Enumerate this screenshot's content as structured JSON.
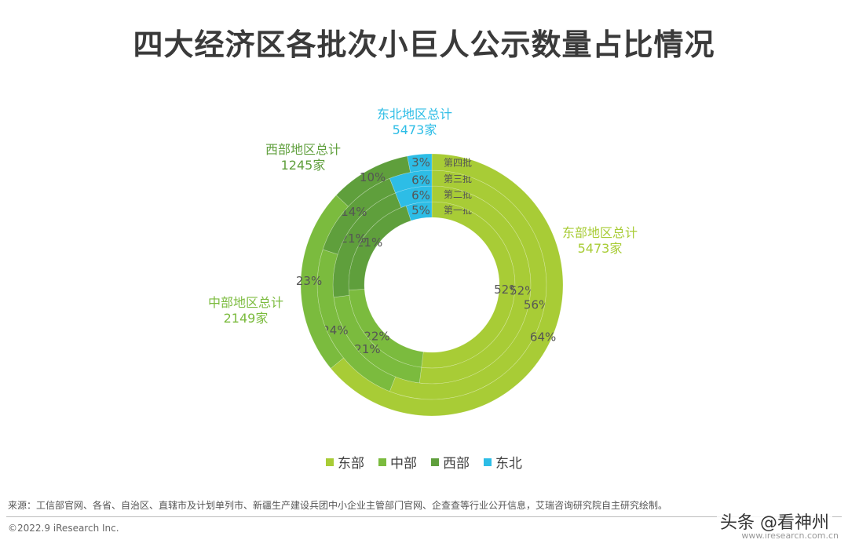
{
  "title": "四大经济区各批次小巨人公示数量占比情况",
  "colors": {
    "east": "#a8cc36",
    "central": "#7bbb3e",
    "west": "#5f9f3c",
    "northeast": "#2dbde6",
    "text_dark": "#555555"
  },
  "region_labels": {
    "northeast": {
      "line1": "东北地区总计",
      "line2": "5473家"
    },
    "west": {
      "line1": "西部地区总计",
      "line2": "1245家"
    },
    "east": {
      "line1": "东部地区总计",
      "line2": "5473家"
    },
    "central": {
      "line1": "中部地区总计",
      "line2": "2149家"
    }
  },
  "chart_data": {
    "type": "pie",
    "subtype": "multi-ring donut",
    "title": "四大经济区各批次小巨人公示数量占比情况",
    "series": [
      {
        "name": "第一批",
        "values": [
          52,
          22,
          21,
          5
        ]
      },
      {
        "name": "第二批",
        "values": [
          52,
          21,
          21,
          6
        ]
      },
      {
        "name": "第三批",
        "values": [
          56,
          24,
          14,
          6
        ]
      },
      {
        "name": "第四批",
        "values": [
          64,
          23,
          10,
          3
        ]
      }
    ],
    "categories": [
      "东部",
      "中部",
      "西部",
      "东北"
    ],
    "value_labels": {
      "第一批": [
        "52%",
        "22%",
        "21%",
        "5%"
      ],
      "第二批": [
        "52%",
        "21%",
        "21%",
        "6%"
      ],
      "第三批": [
        "56%",
        "24%",
        "14%",
        "6%"
      ],
      "第四批": [
        "64%",
        "23%",
        "10%",
        "3%"
      ]
    },
    "legend": [
      "东部",
      "中部",
      "西部",
      "东北"
    ]
  },
  "legend": [
    {
      "label": "东部",
      "color": "#a8cc36"
    },
    {
      "label": "中部",
      "color": "#7bbb3e"
    },
    {
      "label": "西部",
      "color": "#5f9f3c"
    },
    {
      "label": "东北",
      "color": "#2dbde6"
    }
  ],
  "footer": {
    "source": "来源：工信部官网、各省、自治区、直辖市及计划单列市、新疆生产建设兵团中小企业主管部门官网、企查查等行业公开信息，艾瑞咨询研究院自主研究绘制。",
    "copyright": "©2022.9 iResearch Inc.",
    "watermark": "头条 @看神州",
    "site": "www.iresearch.com.cn"
  }
}
